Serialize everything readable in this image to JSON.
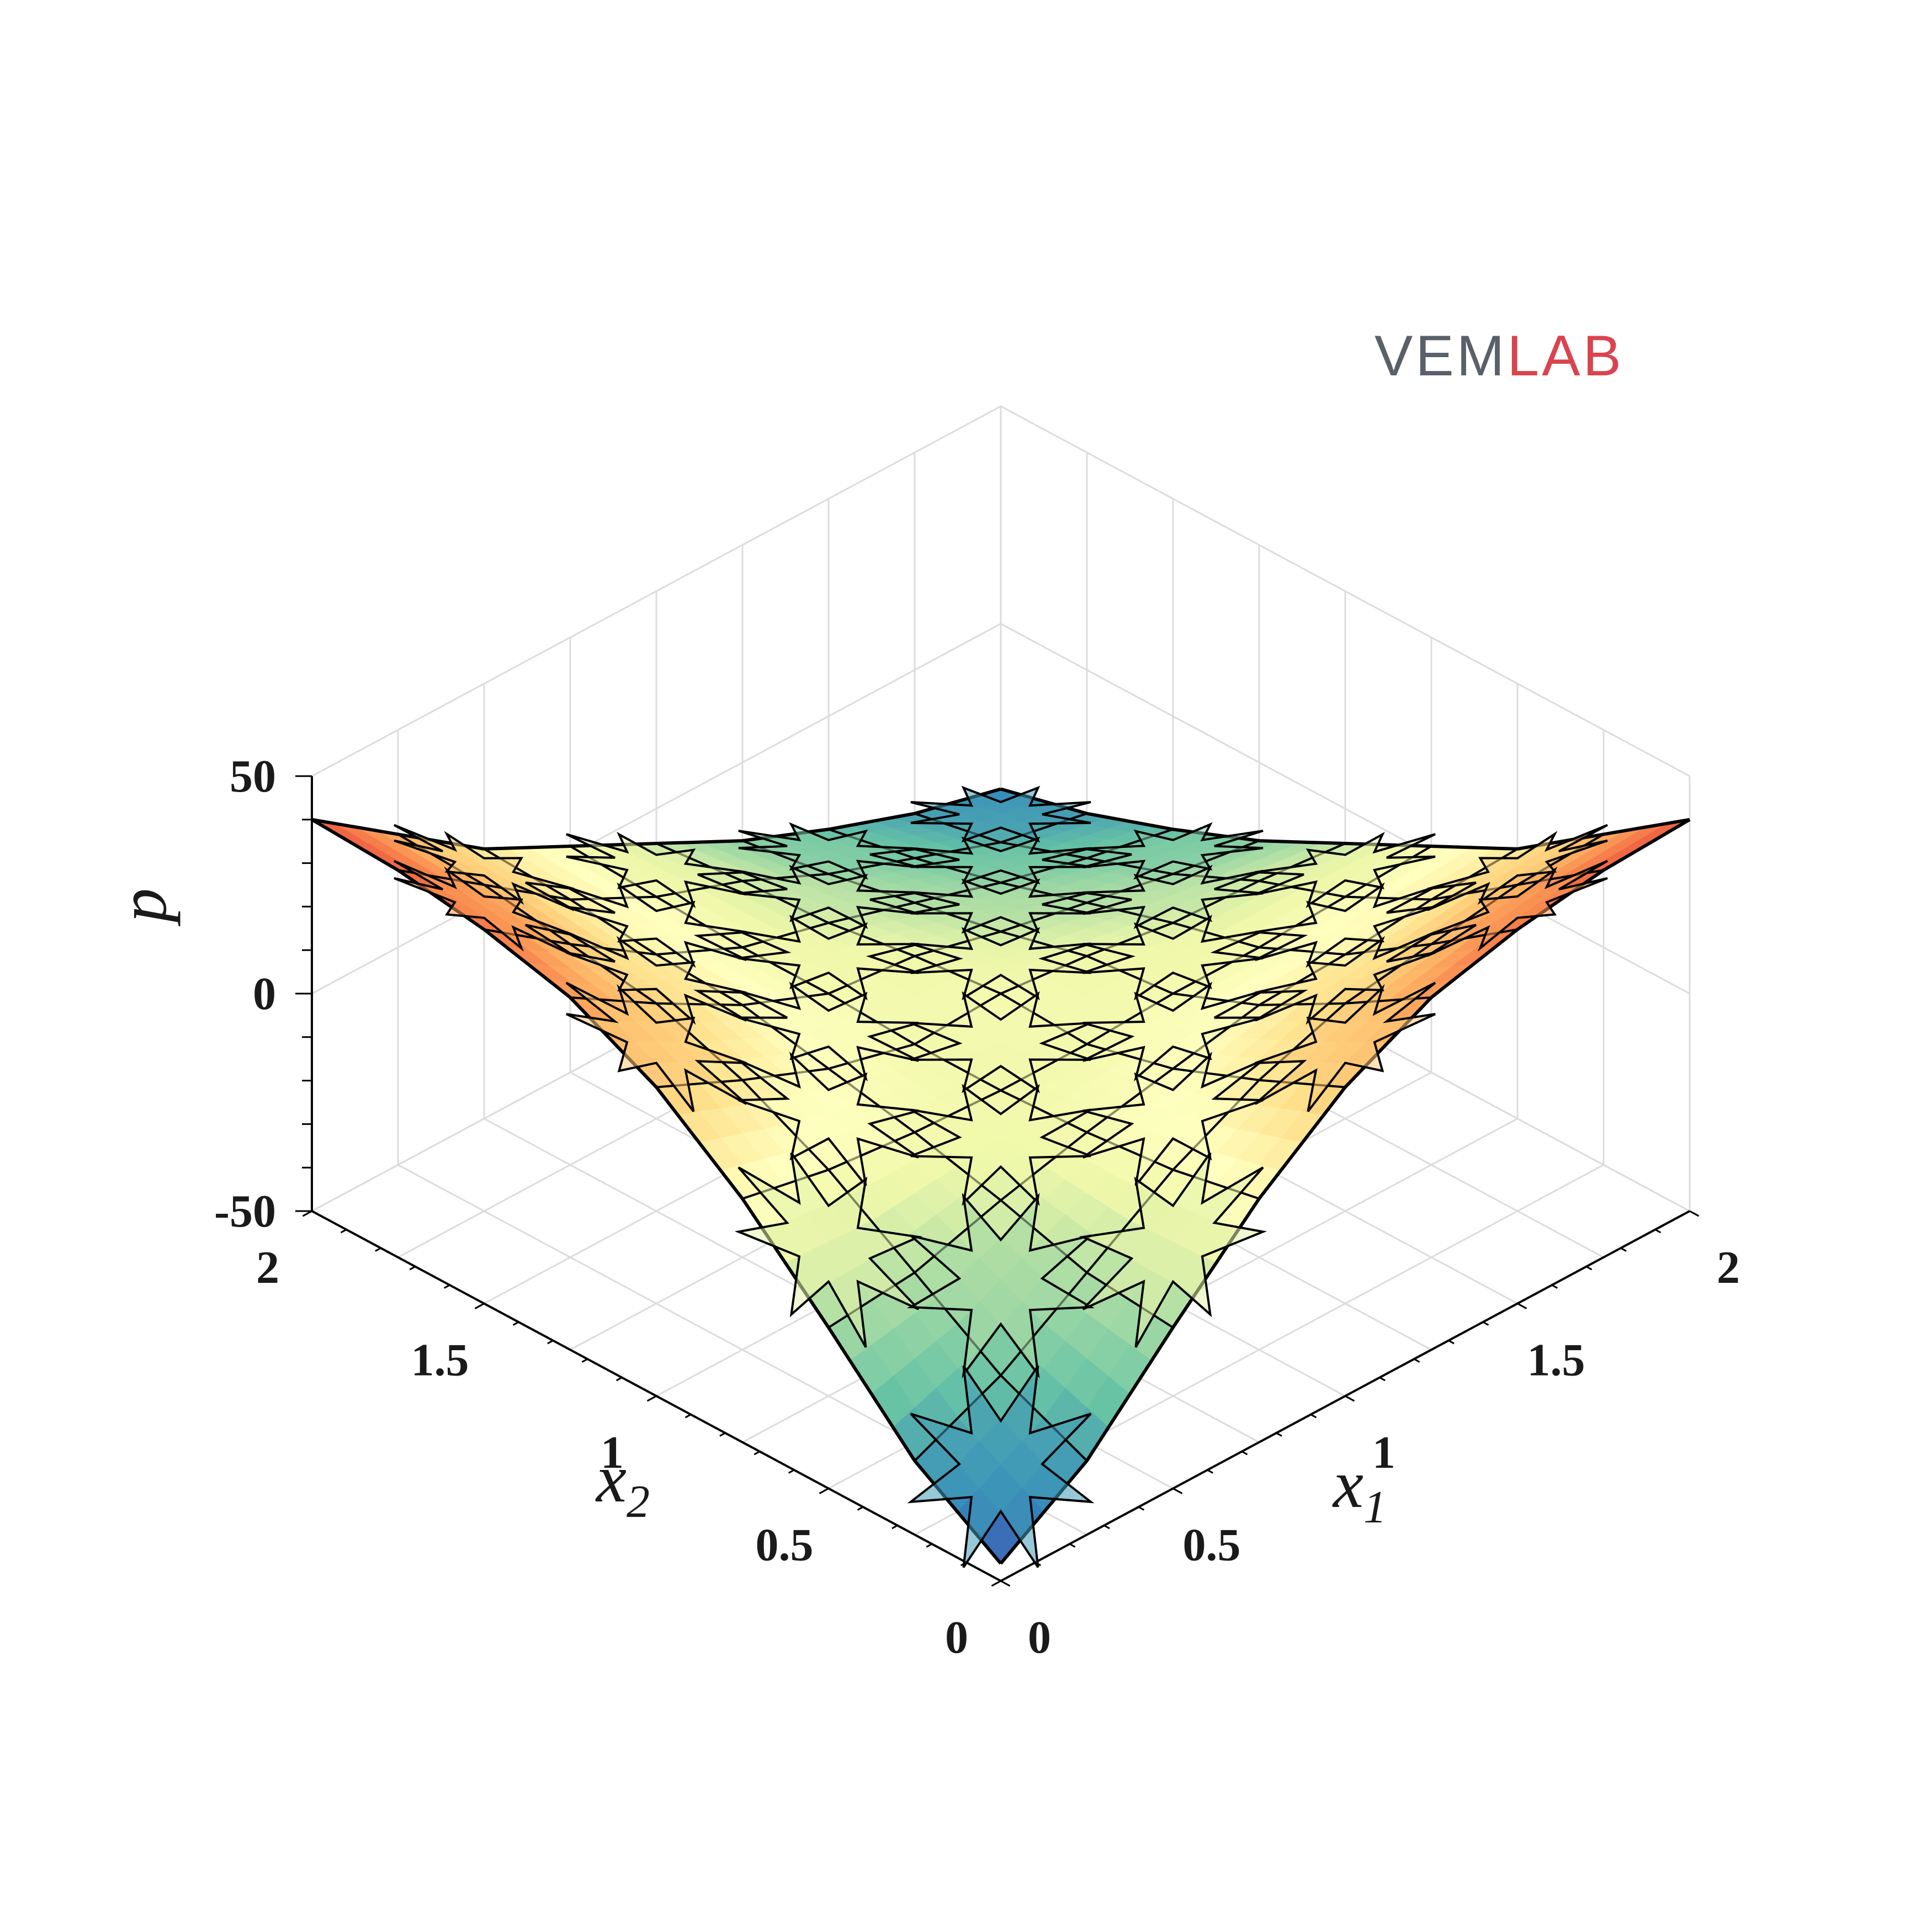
{
  "logo": {
    "part1": "VEM",
    "part2": "LAB",
    "color1": "#5a6069",
    "color2": "#d9444f"
  },
  "chart_data": {
    "type": "surface",
    "title": "",
    "xlabel": "x",
    "xlabel_sub": "1",
    "ylabel": "x",
    "ylabel_sub": "2",
    "zlabel": "p",
    "xlim": [
      0,
      2
    ],
    "ylim": [
      0,
      2
    ],
    "zlim": [
      -50,
      50
    ],
    "x_ticks": [
      "0",
      "0.5",
      "1",
      "1.5",
      "2"
    ],
    "y_ticks": [
      "0",
      "0.5",
      "1",
      "1.5",
      "2"
    ],
    "z_ticks": [
      "-50",
      "0",
      "50"
    ],
    "grid": true,
    "colormap": "spectral (blue-green-yellow-orange-red)",
    "mesh": "polygonal mesh with star-shaped elements",
    "x": [
      0,
      0.25,
      0.5,
      0.75,
      1,
      1.25,
      1.5,
      1.75,
      2
    ],
    "y": [
      0,
      0.25,
      0.5,
      0.75,
      1,
      1.25,
      1.5,
      1.75,
      2
    ],
    "z": [
      [
        -46,
        -33,
        -13,
        6,
        21,
        31,
        36,
        39,
        40
      ],
      [
        -33,
        -24,
        -11,
        2,
        12,
        19,
        22,
        25,
        26
      ],
      [
        -13,
        -11,
        -5,
        0,
        4,
        8,
        9,
        11,
        12
      ],
      [
        6,
        2,
        0,
        -1,
        -1,
        0,
        0,
        1,
        2
      ],
      [
        21,
        12,
        4,
        -1,
        0,
        -2,
        -5,
        -6,
        -8
      ],
      [
        31,
        19,
        8,
        0,
        -2,
        -7,
        -11,
        -15,
        -18
      ],
      [
        36,
        22,
        9,
        0,
        -5,
        -11,
        -17,
        -22,
        -26
      ],
      [
        39,
        25,
        11,
        1,
        -6,
        -15,
        -22,
        -29,
        -33
      ],
      [
        40,
        26,
        12,
        2,
        -8,
        -18,
        -26,
        -33,
        -38
      ]
    ]
  }
}
